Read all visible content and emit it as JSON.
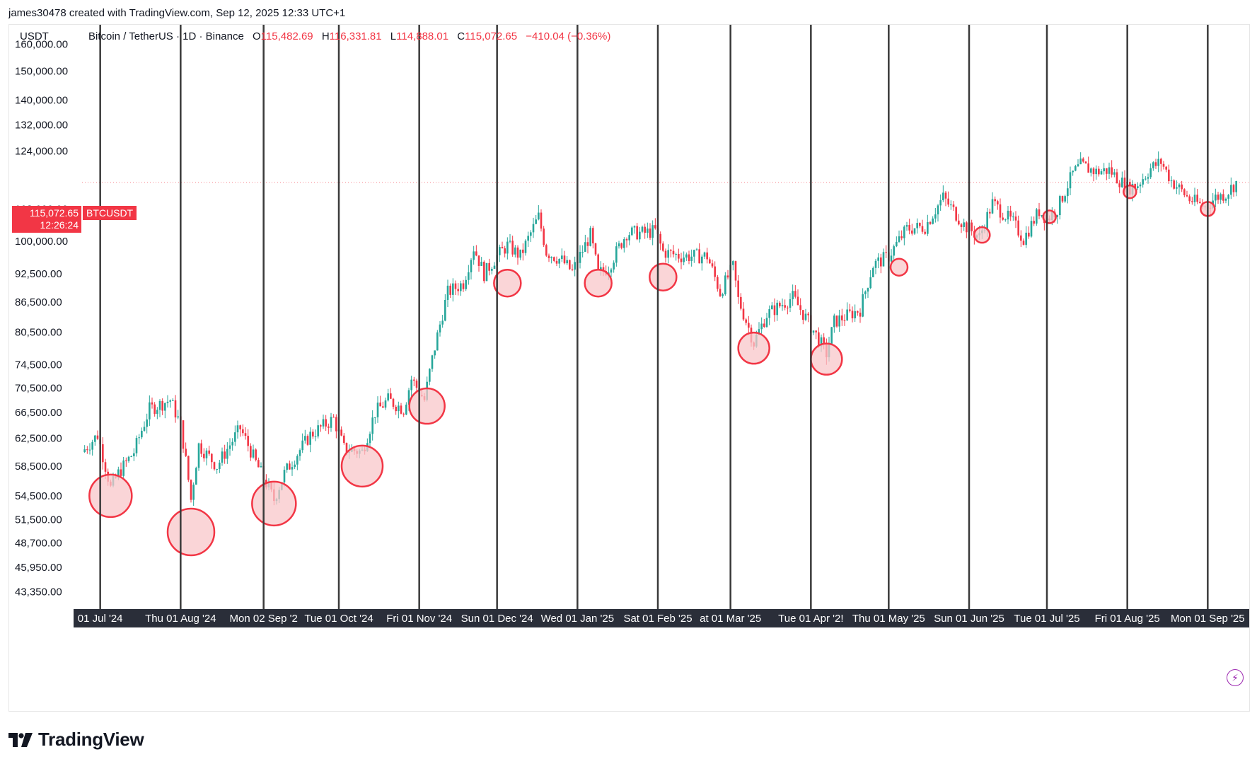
{
  "credit": "james30478 created with TradingView.com, Sep 12, 2025 12:33 UTC+1",
  "header": {
    "unit": "USDT",
    "symbol": "Bitcoin / TetherUS · 1D · Binance",
    "o_label": "O",
    "o_value": "115,482.69",
    "h_label": "H",
    "h_value": "116,331.81",
    "l_label": "L",
    "l_value": "114,888.01",
    "c_label": "C",
    "c_value": "115,072.65",
    "change": "−410.04 (−0.36%)"
  },
  "price_tag": {
    "price": "115,072.65",
    "countdown": "12:26:24",
    "ticker": "BTCUSDT"
  },
  "brand": "TradingView",
  "colors": {
    "up": "#26a69a",
    "down": "#f23645",
    "marker_fill": "#f8c7c9",
    "marker_stroke": "#f23645",
    "vline": "#3a3a3a",
    "xaxis_bg": "#2a2e39"
  },
  "chart_data": {
    "type": "candlestick",
    "y_scale": "log",
    "y_ticks": [
      "160,000.00",
      "150,000.00",
      "140,000.00",
      "132,000.00",
      "124,000.00",
      "108,000.00",
      "100,000.00",
      "92,500.00",
      "86,500.00",
      "80,500.00",
      "74,500.00",
      "70,500.00",
      "66,500.00",
      "62,500.00",
      "58,500.00",
      "54,500.00",
      "51,500.00",
      "48,700.00",
      "45,950.00",
      "43,350.00"
    ],
    "x_labels": [
      "01 Jul '24",
      "Thu 01 Aug '24",
      "Mon 02 Sep '2",
      "Tue 01 Oct '24",
      "Fri 01 Nov '24",
      "Sun 01 Dec '24",
      "Wed 01 Jan '25",
      "Sat 01 Feb '25",
      "at 01 Mar '25",
      "Tue 01 Apr '2!",
      "Thu 01 May '25",
      "Sun 01 Jun '25",
      "Tue 01 Jul '25",
      "Fri 01 Aug '25",
      "Mon 01 Sep '25"
    ],
    "month_start_lines": [
      "2024-07-01",
      "2024-08-01",
      "2024-09-02",
      "2024-10-01",
      "2024-11-01",
      "2024-12-01",
      "2025-01-01",
      "2025-02-01",
      "2025-03-01",
      "2025-04-01",
      "2025-05-01",
      "2025-06-01",
      "2025-07-01",
      "2025-08-01",
      "2025-09-01"
    ],
    "last_price": 115072.65,
    "price_path": [
      [
        "2024-06-24",
        60500
      ],
      [
        "2024-06-30",
        63000
      ],
      [
        "2024-07-05",
        55500
      ],
      [
        "2024-07-08",
        57500
      ],
      [
        "2024-07-14",
        60500
      ],
      [
        "2024-07-20",
        67000
      ],
      [
        "2024-07-28",
        68500
      ],
      [
        "2024-08-01",
        64500
      ],
      [
        "2024-08-05",
        54000
      ],
      [
        "2024-08-08",
        61500
      ],
      [
        "2024-08-15",
        58500
      ],
      [
        "2024-08-24",
        64000
      ],
      [
        "2024-08-30",
        59000
      ],
      [
        "2024-09-06",
        54000
      ],
      [
        "2024-09-10",
        57500
      ],
      [
        "2024-09-20",
        63000
      ],
      [
        "2024-09-29",
        65500
      ],
      [
        "2024-10-03",
        61000
      ],
      [
        "2024-10-10",
        60500
      ],
      [
        "2024-10-15",
        66500
      ],
      [
        "2024-10-20",
        68500
      ],
      [
        "2024-10-26",
        67000
      ],
      [
        "2024-10-29",
        72000
      ],
      [
        "2024-11-03",
        68500
      ],
      [
        "2024-11-06",
        75500
      ],
      [
        "2024-11-12",
        88500
      ],
      [
        "2024-11-18",
        90500
      ],
      [
        "2024-11-22",
        98500
      ],
      [
        "2024-11-26",
        92500
      ],
      [
        "2024-12-01",
        96500
      ],
      [
        "2024-12-05",
        99000
      ],
      [
        "2024-12-10",
        96500
      ],
      [
        "2024-12-17",
        106000
      ],
      [
        "2024-12-20",
        97500
      ],
      [
        "2024-12-26",
        95500
      ],
      [
        "2024-12-30",
        93000
      ],
      [
        "2025-01-06",
        101500
      ],
      [
        "2025-01-09",
        92500
      ],
      [
        "2025-01-13",
        94000
      ],
      [
        "2025-01-20",
        102000
      ],
      [
        "2025-01-27",
        102000
      ],
      [
        "2025-01-31",
        102500
      ],
      [
        "2025-02-03",
        97500
      ],
      [
        "2025-02-10",
        96500
      ],
      [
        "2025-02-20",
        96500
      ],
      [
        "2025-02-25",
        88500
      ],
      [
        "2025-03-02",
        94000
      ],
      [
        "2025-03-04",
        87000
      ],
      [
        "2025-03-10",
        78500
      ],
      [
        "2025-03-15",
        84000
      ],
      [
        "2025-03-25",
        87500
      ],
      [
        "2025-03-31",
        82500
      ],
      [
        "2025-04-07",
        76500
      ],
      [
        "2025-04-10",
        82500
      ],
      [
        "2025-04-20",
        85000
      ],
      [
        "2025-04-25",
        94500
      ],
      [
        "2025-05-01",
        96500
      ],
      [
        "2025-05-08",
        103000
      ],
      [
        "2025-05-15",
        103500
      ],
      [
        "2025-05-22",
        111000
      ],
      [
        "2025-05-30",
        104000
      ],
      [
        "2025-06-05",
        101000
      ],
      [
        "2025-06-10",
        109500
      ],
      [
        "2025-06-18",
        104500
      ],
      [
        "2025-06-22",
        100500
      ],
      [
        "2025-06-28",
        107500
      ],
      [
        "2025-07-01",
        105500
      ],
      [
        "2025-07-05",
        108000
      ],
      [
        "2025-07-11",
        117500
      ],
      [
        "2025-07-14",
        119800
      ],
      [
        "2025-07-20",
        118000
      ],
      [
        "2025-07-25",
        118500
      ],
      [
        "2025-08-01",
        113500
      ],
      [
        "2025-08-05",
        114500
      ],
      [
        "2025-08-10",
        119000
      ],
      [
        "2025-08-14",
        120800
      ],
      [
        "2025-08-18",
        115500
      ],
      [
        "2025-08-25",
        110500
      ],
      [
        "2025-08-31",
        108500
      ],
      [
        "2025-09-04",
        111000
      ],
      [
        "2025-09-08",
        112000
      ],
      [
        "2025-09-12",
        115072.65
      ]
    ],
    "marked_lows": [
      {
        "date": "2024-07-05",
        "price": 54500
      },
      {
        "date": "2024-08-05",
        "price": 50000
      },
      {
        "date": "2024-09-06",
        "price": 53500
      },
      {
        "date": "2024-10-10",
        "price": 58500
      },
      {
        "date": "2024-11-04",
        "price": 67500
      },
      {
        "date": "2024-12-05",
        "price": 90500
      },
      {
        "date": "2025-01-09",
        "price": 90500
      },
      {
        "date": "2025-02-03",
        "price": 91800
      },
      {
        "date": "2025-03-10",
        "price": 77500
      },
      {
        "date": "2025-04-07",
        "price": 75500
      },
      {
        "date": "2025-05-05",
        "price": 94000
      },
      {
        "date": "2025-06-06",
        "price": 101500
      },
      {
        "date": "2025-07-02",
        "price": 106000
      },
      {
        "date": "2025-08-02",
        "price": 112500
      },
      {
        "date": "2025-09-01",
        "price": 108000
      }
    ],
    "marker_sizes": [
      30,
      33,
      31,
      29,
      25,
      19,
      19,
      19,
      22,
      22,
      12,
      11,
      9,
      9,
      10
    ]
  }
}
